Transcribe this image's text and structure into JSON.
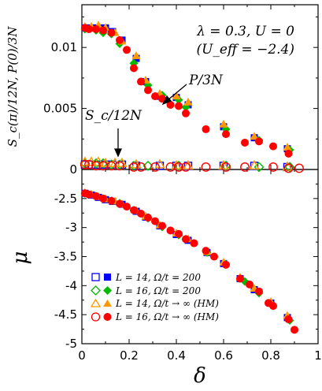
{
  "chart_data": [
    {
      "panel": "top",
      "type": "scatter",
      "title": "",
      "ylabel": "S_c(π)/12N, P(0)/3N",
      "xlim": [
        0,
        1
      ],
      "ylim": [
        0,
        0.0135
      ],
      "yticks": [
        "0",
        "0.005",
        "0.01"
      ],
      "annotations": [
        "λ = 0.3, U = 0",
        "(U_eff = −2.4)",
        "P/3N",
        "S_c/12N"
      ],
      "series": [
        {
          "name": "L = 14, Ω/t = 200",
          "style": "square-filled",
          "color": "#0000ff",
          "points": [
            [
              0.013,
              0.0116
            ],
            [
              0.04,
              0.0116
            ],
            [
              0.07,
              0.0116
            ],
            [
              0.1,
              0.0116
            ],
            [
              0.13,
              0.0113
            ],
            [
              0.17,
              0.0106
            ],
            [
              0.23,
              0.0091
            ],
            [
              0.27,
              0.0072
            ],
            [
              0.33,
              0.006
            ],
            [
              0.4,
              0.0059
            ],
            [
              0.45,
              0.0053
            ],
            [
              0.6,
              0.0035
            ],
            [
              0.73,
              0.0026
            ],
            [
              0.87,
              0.0017
            ]
          ]
        },
        {
          "name": "L = 14, Ω/t = 200",
          "style": "square-open",
          "color": "#0000ff",
          "points": [
            [
              0.013,
              0.0004
            ],
            [
              0.04,
              0.0004
            ],
            [
              0.07,
              0.0004
            ],
            [
              0.1,
              0.0004
            ],
            [
              0.13,
              0.0004
            ],
            [
              0.17,
              0.0004
            ],
            [
              0.23,
              0.0003
            ],
            [
              0.33,
              0.0003
            ],
            [
              0.4,
              0.0003
            ],
            [
              0.45,
              0.0003
            ],
            [
              0.6,
              0.0003
            ],
            [
              0.73,
              0.0003
            ],
            [
              0.87,
              0.0002
            ]
          ]
        },
        {
          "name": "L = 16, Ω/t = 200",
          "style": "diamond-filled",
          "color": "#00bb00",
          "points": [
            [
              0.013,
              0.0115
            ],
            [
              0.06,
              0.0114
            ],
            [
              0.09,
              0.0112
            ],
            [
              0.125,
              0.0111
            ],
            [
              0.16,
              0.0103
            ],
            [
              0.22,
              0.0087
            ],
            [
              0.28,
              0.0069
            ],
            [
              0.34,
              0.0061
            ],
            [
              0.41,
              0.0057
            ],
            [
              0.44,
              0.0051
            ],
            [
              0.61,
              0.0033
            ],
            [
              0.75,
              0.0024
            ],
            [
              0.88,
              0.0016
            ]
          ]
        },
        {
          "name": "L = 16, Ω/t = 200",
          "style": "diamond-open",
          "color": "#00bb00",
          "points": [
            [
              0.013,
              0.0005
            ],
            [
              0.06,
              0.0005
            ],
            [
              0.09,
              0.0005
            ],
            [
              0.125,
              0.0004
            ],
            [
              0.16,
              0.0004
            ],
            [
              0.22,
              0.0003
            ],
            [
              0.28,
              0.0003
            ],
            [
              0.41,
              0.0003
            ],
            [
              0.61,
              0.0003
            ],
            [
              0.75,
              0.0002
            ],
            [
              0.88,
              0.0002
            ]
          ]
        },
        {
          "name": "L = 14, Ω/t → ∞ (HM)",
          "style": "triangle-filled",
          "color": "#ff9900",
          "points": [
            [
              0.013,
              0.0117
            ],
            [
              0.04,
              0.0117
            ],
            [
              0.07,
              0.0118
            ],
            [
              0.1,
              0.0116
            ],
            [
              0.14,
              0.0112
            ],
            [
              0.17,
              0.0105
            ],
            [
              0.23,
              0.0093
            ],
            [
              0.27,
              0.0073
            ],
            [
              0.33,
              0.0062
            ],
            [
              0.4,
              0.006
            ],
            [
              0.45,
              0.0055
            ],
            [
              0.6,
              0.0037
            ],
            [
              0.73,
              0.0027
            ],
            [
              0.87,
              0.0018
            ]
          ]
        },
        {
          "name": "L = 14, Ω/t → ∞ (HM)",
          "style": "triangle-open",
          "color": "#ff9900",
          "points": [
            [
              0.013,
              0.0006
            ],
            [
              0.04,
              0.0006
            ],
            [
              0.07,
              0.0006
            ],
            [
              0.1,
              0.0005
            ],
            [
              0.14,
              0.0005
            ],
            [
              0.17,
              0.0005
            ],
            [
              0.23,
              0.0004
            ],
            [
              0.33,
              0.0004
            ],
            [
              0.4,
              0.0003
            ],
            [
              0.45,
              0.0003
            ],
            [
              0.6,
              0.0003
            ],
            [
              0.73,
              0.0003
            ],
            [
              0.87,
              0.0002
            ]
          ]
        },
        {
          "name": "L = 16, Ω/t → ∞ (HM)",
          "style": "circle-filled",
          "color": "#ff0000",
          "points": [
            [
              0.013,
              0.0116
            ],
            [
              0.03,
              0.0115
            ],
            [
              0.06,
              0.0115
            ],
            [
              0.09,
              0.0114
            ],
            [
              0.125,
              0.0112
            ],
            [
              0.16,
              0.0106
            ],
            [
              0.19,
              0.0098
            ],
            [
              0.22,
              0.0083
            ],
            [
              0.25,
              0.0072
            ],
            [
              0.28,
              0.0065
            ],
            [
              0.31,
              0.006
            ],
            [
              0.34,
              0.0058
            ],
            [
              0.375,
              0.0053
            ],
            [
              0.41,
              0.0052
            ],
            [
              0.44,
              0.0046
            ],
            [
              0.525,
              0.0033
            ],
            [
              0.61,
              0.0029
            ],
            [
              0.69,
              0.0022
            ],
            [
              0.75,
              0.0023
            ],
            [
              0.81,
              0.0019
            ],
            [
              0.875,
              0.0013
            ]
          ]
        },
        {
          "name": "L = 16, Ω/t → ∞ (HM)",
          "style": "circle-open",
          "color": "#ff0000",
          "points": [
            [
              0.013,
              0.0004
            ],
            [
              0.03,
              0.0004
            ],
            [
              0.06,
              0.0003
            ],
            [
              0.09,
              0.0003
            ],
            [
              0.125,
              0.0003
            ],
            [
              0.16,
              0.0003
            ],
            [
              0.22,
              0.0002
            ],
            [
              0.25,
              0.0002
            ],
            [
              0.31,
              0.0002
            ],
            [
              0.375,
              0.0002
            ],
            [
              0.41,
              0.0002
            ],
            [
              0.44,
              0.0002
            ],
            [
              0.525,
              0.0002
            ],
            [
              0.61,
              0.0002
            ],
            [
              0.69,
              0.0002
            ],
            [
              0.81,
              0.0002
            ],
            [
              0.875,
              0.0001
            ],
            [
              0.92,
              0.0001
            ]
          ]
        }
      ]
    },
    {
      "panel": "bottom",
      "type": "scatter",
      "title": "",
      "xlabel": "δ",
      "ylabel": "μ",
      "xlim": [
        0,
        1
      ],
      "ylim": [
        -5,
        -2
      ],
      "xticks": [
        "0",
        "0.2",
        "0.4",
        "0.6",
        "0.8",
        "1"
      ],
      "yticks": [
        "-2.5",
        "-3",
        "-3.5",
        "-4",
        "-4.5",
        "-5"
      ],
      "series": [
        {
          "name": "L = 14, Ω/t = 200",
          "style": "square-filled",
          "color": "#0000ff",
          "points": [
            [
              0.013,
              -2.41
            ],
            [
              0.04,
              -2.44
            ],
            [
              0.07,
              -2.48
            ],
            [
              0.1,
              -2.52
            ],
            [
              0.13,
              -2.55
            ],
            [
              0.17,
              -2.6
            ],
            [
              0.23,
              -2.72
            ],
            [
              0.27,
              -2.82
            ],
            [
              0.33,
              -2.97
            ],
            [
              0.4,
              -3.12
            ],
            [
              0.45,
              -3.22
            ],
            [
              0.53,
              -3.43
            ],
            [
              0.6,
              -3.62
            ],
            [
              0.67,
              -3.88
            ],
            [
              0.73,
              -4.07
            ],
            [
              0.8,
              -4.3
            ],
            [
              0.87,
              -4.55
            ]
          ]
        },
        {
          "name": "L = 16, Ω/t = 200",
          "style": "diamond-filled",
          "color": "#00bb00",
          "points": [
            [
              0.013,
              -2.41
            ],
            [
              0.06,
              -2.46
            ],
            [
              0.09,
              -2.5
            ],
            [
              0.125,
              -2.54
            ],
            [
              0.16,
              -2.58
            ],
            [
              0.22,
              -2.7
            ],
            [
              0.28,
              -2.84
            ],
            [
              0.34,
              -2.99
            ],
            [
              0.41,
              -3.13
            ],
            [
              0.44,
              -3.2
            ],
            [
              0.53,
              -3.43
            ],
            [
              0.61,
              -3.63
            ],
            [
              0.69,
              -3.93
            ],
            [
              0.75,
              -4.13
            ],
            [
              0.81,
              -4.35
            ],
            [
              0.88,
              -4.6
            ]
          ]
        },
        {
          "name": "L = 14, Ω/t → ∞ (HM)",
          "style": "triangle-filled",
          "color": "#ff9900",
          "points": [
            [
              0.013,
              -2.4
            ],
            [
              0.04,
              -2.43
            ],
            [
              0.07,
              -2.47
            ],
            [
              0.1,
              -2.51
            ],
            [
              0.14,
              -2.55
            ],
            [
              0.17,
              -2.6
            ],
            [
              0.23,
              -2.71
            ],
            [
              0.27,
              -2.81
            ],
            [
              0.33,
              -2.96
            ],
            [
              0.4,
              -3.1
            ],
            [
              0.45,
              -3.2
            ],
            [
              0.53,
              -3.42
            ],
            [
              0.6,
              -3.6
            ],
            [
              0.67,
              -3.86
            ],
            [
              0.73,
              -4.05
            ],
            [
              0.8,
              -4.28
            ],
            [
              0.87,
              -4.52
            ]
          ]
        },
        {
          "name": "L = 16, Ω/t → ∞ (HM)",
          "style": "circle-filled",
          "color": "#ff0000",
          "points": [
            [
              0.013,
              -2.41
            ],
            [
              0.03,
              -2.43
            ],
            [
              0.06,
              -2.46
            ],
            [
              0.09,
              -2.5
            ],
            [
              0.125,
              -2.54
            ],
            [
              0.16,
              -2.59
            ],
            [
              0.19,
              -2.64
            ],
            [
              0.22,
              -2.7
            ],
            [
              0.25,
              -2.76
            ],
            [
              0.28,
              -2.83
            ],
            [
              0.31,
              -2.89
            ],
            [
              0.34,
              -2.97
            ],
            [
              0.375,
              -3.05
            ],
            [
              0.41,
              -3.11
            ],
            [
              0.44,
              -3.2
            ],
            [
              0.475,
              -3.27
            ],
            [
              0.525,
              -3.4
            ],
            [
              0.56,
              -3.5
            ],
            [
              0.61,
              -3.64
            ],
            [
              0.67,
              -3.88
            ],
            [
              0.71,
              -3.98
            ],
            [
              0.75,
              -4.1
            ],
            [
              0.79,
              -4.3
            ],
            [
              0.81,
              -4.35
            ],
            [
              0.875,
              -4.58
            ],
            [
              0.9,
              -4.76
            ]
          ]
        }
      ]
    }
  ],
  "legend": [
    {
      "text": "L = 14, Ω/t = 200",
      "color": "#0000ff",
      "marker": "square"
    },
    {
      "text": "L = 16, Ω/t = 200",
      "color": "#00bb00",
      "marker": "diamond"
    },
    {
      "text": "L = 14, Ω/t → ∞ (HM)",
      "color": "#ff9900",
      "marker": "triangle"
    },
    {
      "text": "L = 16, Ω/t → ∞ (HM)",
      "color": "#ff0000",
      "marker": "circle"
    }
  ],
  "colors": {
    "blue": "#0000ff",
    "green": "#00bb00",
    "orange": "#ff9900",
    "red": "#ff0000"
  }
}
